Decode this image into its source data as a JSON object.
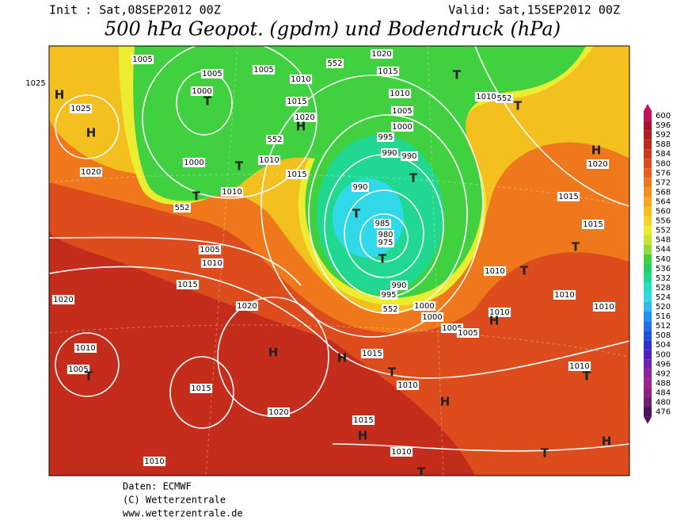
{
  "header": {
    "init": "Init : Sat,08SEP2012 00Z",
    "valid": "Valid: Sat,15SEP2012 00Z",
    "title": "500 hPa Geopot. (gpdm) und Bodendruck (hPa)"
  },
  "colorbar": {
    "labels": [
      600,
      596,
      592,
      588,
      584,
      580,
      576,
      572,
      568,
      564,
      560,
      556,
      552,
      548,
      544,
      540,
      536,
      532,
      528,
      524,
      520,
      516,
      512,
      508,
      504,
      500,
      496,
      492,
      488,
      484,
      480,
      476
    ],
    "colors": [
      "#c8105a",
      "#b01030",
      "#b41c1c",
      "#c02a1c",
      "#cc3a1c",
      "#dc4c1c",
      "#e8601c",
      "#f0781c",
      "#f4901c",
      "#f4a820",
      "#f4c020",
      "#f4d428",
      "#ecec30",
      "#c8e430",
      "#90dc30",
      "#40d040",
      "#20d060",
      "#20d890",
      "#20e0c0",
      "#30d8e8",
      "#30b8f0",
      "#2090f0",
      "#2070f0",
      "#2050e0",
      "#3030d0",
      "#5020c0",
      "#7020b0",
      "#9020a0",
      "#a02090",
      "#902080",
      "#702070",
      "#501060"
    ]
  },
  "map": {
    "labels": [
      "H",
      "H",
      1025,
      1025,
      1005,
      1005,
      1000,
      "T",
      1005,
      1010,
      1015,
      1020,
      "H",
      1000,
      "T",
      1010,
      "T",
      1010,
      1015,
      1020,
      1010,
      1005,
      1000,
      995,
      990,
      990,
      "T",
      990,
      "T",
      985,
      980,
      975,
      "T",
      990,
      995,
      1000,
      1000,
      1005,
      1005,
      552,
      552,
      552,
      552,
      552,
      1020,
      1015,
      "T",
      1010,
      "T",
      "H",
      1020,
      1015,
      1015,
      "T",
      1010,
      "T",
      1010,
      1010,
      "H",
      1010,
      1005,
      1010,
      1015,
      1020,
      1020,
      "H",
      "H",
      1015,
      "T",
      1010,
      1010,
      1005,
      "T",
      1015,
      1020,
      1015,
      "H",
      "H",
      1010,
      "T",
      "H",
      "T",
      1010,
      "T",
      1010
    ]
  },
  "footer": {
    "lines": [
      "Daten: ECMWF",
      "(C) Wetterzentrale",
      "www.wetterzentrale.de"
    ]
  }
}
